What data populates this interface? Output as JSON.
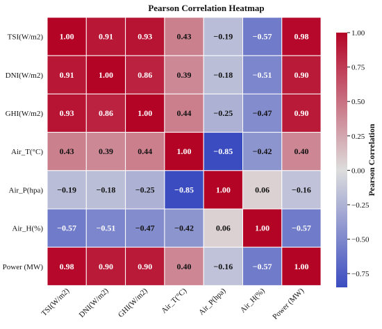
{
  "chart_data": {
    "type": "heatmap",
    "title": "Pearson Correlation Heatmap",
    "rows": [
      "TSI(W/m2)",
      "DNI(W/m2)",
      "GHI(W/m2)",
      "Air_T(°C)",
      "Air_P(hpa)",
      "Air_H(%)",
      "Power (MW)"
    ],
    "columns": [
      "TSI(W/m2)",
      "DNI(W/m2)",
      "GHI(W/m2)",
      "Air_T(°C)",
      "Air_P(hpa)",
      "Air_H(%)",
      "Power (MW)"
    ],
    "values": [
      [
        1.0,
        0.91,
        0.93,
        0.43,
        -0.19,
        -0.57,
        0.98
      ],
      [
        0.91,
        1.0,
        0.86,
        0.39,
        -0.18,
        -0.51,
        0.9
      ],
      [
        0.93,
        0.86,
        1.0,
        0.44,
        -0.25,
        -0.47,
        0.9
      ],
      [
        0.43,
        0.39,
        0.44,
        1.0,
        -0.85,
        -0.42,
        0.4
      ],
      [
        -0.19,
        -0.18,
        -0.25,
        -0.85,
        1.0,
        0.06,
        -0.16
      ],
      [
        -0.57,
        -0.51,
        -0.47,
        -0.42,
        0.06,
        1.0,
        -0.57
      ],
      [
        0.98,
        0.9,
        0.9,
        0.4,
        -0.16,
        -0.57,
        1.0
      ]
    ],
    "value_labels": [
      [
        "1.00",
        "0.91",
        "0.93",
        "0.43",
        "−0.19",
        "−0.57",
        "0.98"
      ],
      [
        "0.91",
        "1.00",
        "0.86",
        "0.39",
        "−0.18",
        "−0.51",
        "0.90"
      ],
      [
        "0.93",
        "0.86",
        "1.00",
        "0.44",
        "−0.25",
        "−0.47",
        "0.90"
      ],
      [
        "0.43",
        "0.39",
        "0.44",
        "1.00",
        "−0.85",
        "−0.42",
        "0.40"
      ],
      [
        "−0.19",
        "−0.18",
        "−0.25",
        "−0.85",
        "1.00",
        "0.06",
        "−0.16"
      ],
      [
        "−0.57",
        "−0.51",
        "−0.47",
        "−0.42",
        "0.06",
        "1.00",
        "−0.57"
      ],
      [
        "0.98",
        "0.90",
        "0.90",
        "0.40",
        "−0.16",
        "−0.57",
        "1.00"
      ]
    ],
    "colorbar": {
      "label": "Pearson Correlation",
      "range": [
        -0.85,
        1.0
      ],
      "ticks": [
        1.0,
        0.75,
        0.5,
        0.25,
        0.0,
        -0.25,
        -0.5,
        -0.75
      ],
      "tick_labels": [
        "1.00",
        "0.75",
        "0.50",
        "0.25",
        "0.00",
        "−0.25",
        "−0.50",
        "−0.75"
      ],
      "colormap": "coolwarm"
    },
    "colors": {
      "low": "#3b4cc0",
      "mid": "#dddddd",
      "high": "#b40426"
    },
    "grid": true
  }
}
